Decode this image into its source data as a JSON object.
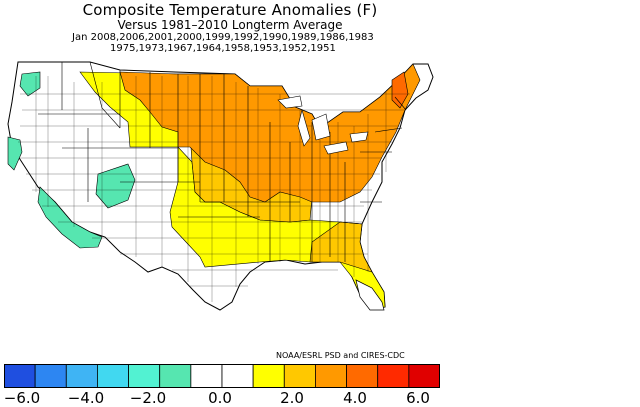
{
  "title": "Composite Temperature Anomalies (F)",
  "subtitle": "Versus 1981–2010 Longterm Average",
  "years_line1": "Jan  2008,2006,2001,2000,1999,1992,1990,1989,1986,1983",
  "years_line2": "1975,1973,1967,1964,1958,1953,1952,1951",
  "credit": "NOAA/ESRL PSD and CIRES-CDC",
  "colorbar": {
    "colors": [
      "#1f4fe0",
      "#2d86f2",
      "#3fb4f4",
      "#41d8f0",
      "#52f2d2",
      "#56e6b0",
      "#ffffff",
      "#ffffff",
      "#ffff00",
      "#ffc800",
      "#ff9900",
      "#ff6a00",
      "#ff2a00",
      "#e00000"
    ],
    "tick_labels": [
      "−6.0",
      "−4.0",
      "−2.0",
      "0.0",
      "2.0",
      "4.0",
      "6.0"
    ]
  },
  "map": {
    "legend_colors": {
      "cool": "#56e6b0",
      "neutral": "#ffffff",
      "warm1": "#ffff00",
      "warm2": "#ffc800",
      "warm3": "#ff9900",
      "warm4": "#ff6a00"
    }
  }
}
